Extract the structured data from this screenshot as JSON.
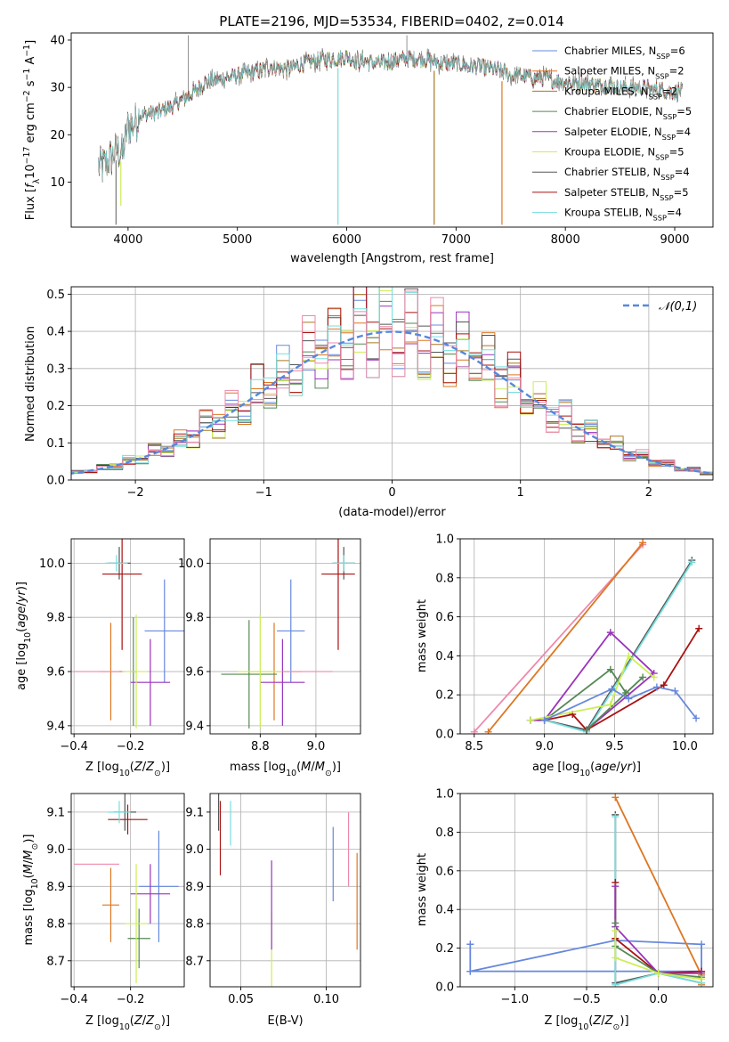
{
  "figure": {
    "title": "PLATE=2196, MJD=53534, FIBERID=0402, z=0.014"
  },
  "colors": {
    "Chabrier MILES": "#6688dd",
    "Salpeter MILES": "#dd7722",
    "Kroupa MILES": "#aa7722",
    "Chabrier ELODIE": "#558855",
    "Salpeter ELODIE": "#9933bb",
    "Kroupa ELODIE": "#ccee55",
    "Chabrier STELIB": "#555555",
    "Salpeter STELIB": "#aa1111",
    "Kroupa STELIB": "#77dddd",
    "pink": "#ee88aa",
    "gauss": "#5588dd"
  },
  "chart_data": [
    {
      "id": "spectrum",
      "type": "line",
      "title": "PLATE=2196, MJD=53534, FIBERID=0402, z=0.014",
      "xlabel": "wavelength [Angstrom, rest frame]",
      "ylabel": "Flux [f_λ 10^-17 erg cm^-2 s^-1 A^-1]",
      "xlim": [
        3480,
        9350
      ],
      "ylim": [
        0.5,
        41.5
      ],
      "xticks": [
        4000,
        5000,
        6000,
        7000,
        8000,
        9000
      ],
      "yticks": [
        10,
        20,
        30,
        40
      ],
      "grid": false,
      "legend_position": "top-right",
      "legend": [
        {
          "name": "Chabrier MILES",
          "nssp": "6"
        },
        {
          "name": "Salpeter MILES",
          "nssp": "2"
        },
        {
          "name": "Kroupa MILES",
          "nssp": "2"
        },
        {
          "name": "Chabrier ELODIE",
          "nssp": "5"
        },
        {
          "name": "Salpeter ELODIE",
          "nssp": "4"
        },
        {
          "name": "Kroupa ELODIE",
          "nssp": "5"
        },
        {
          "name": "Chabrier STELIB",
          "nssp": "4"
        },
        {
          "name": "Salpeter STELIB",
          "nssp": "5"
        },
        {
          "name": "Kroupa STELIB",
          "nssp": "4"
        }
      ],
      "continuum": {
        "x": [
          3730,
          3800,
          3850,
          3900,
          3950,
          4000,
          4050,
          4100,
          4200,
          4300,
          4400,
          4500,
          4600,
          4700,
          4800,
          4900,
          5000,
          5100,
          5200,
          5300,
          5400,
          5500,
          5600,
          5700,
          5800,
          5900,
          6000,
          6100,
          6200,
          6300,
          6400,
          6500,
          6600,
          6700,
          6800,
          6900,
          7000,
          7100,
          7200,
          7300,
          7400,
          7500,
          7600,
          7700,
          7800,
          7900,
          8000,
          8100,
          8200,
          8300,
          8400,
          8500,
          8600,
          8700,
          8800,
          8900,
          9000,
          9070
        ],
        "y": [
          13,
          14,
          15,
          17,
          16,
          22,
          22,
          24,
          24.5,
          25,
          26,
          27.5,
          29,
          31,
          31.5,
          32,
          32.5,
          33,
          33.5,
          34.5,
          34,
          34,
          35,
          35.5,
          36,
          36,
          36.5,
          35.5,
          35.5,
          35,
          35.5,
          36,
          36,
          36,
          35.5,
          35,
          35,
          34.5,
          34.5,
          34,
          33.5,
          32.5,
          32.5,
          32,
          32,
          31.5,
          31,
          31,
          31,
          30.5,
          30.5,
          30,
          30,
          30,
          29.5,
          29.5,
          29,
          29
        ]
      },
      "absorption_features": [
        {
          "x": 3890,
          "y": 1
        },
        {
          "x": 3934,
          "y": 5
        },
        {
          "x": 5920,
          "y": 1
        },
        {
          "x": 6800,
          "y": 1
        },
        {
          "x": 7420,
          "y": 1
        }
      ],
      "emission_features": [
        {
          "x": 4550,
          "y": 41
        },
        {
          "x": 6550,
          "y": 41
        }
      ]
    },
    {
      "id": "residuals",
      "type": "line",
      "xlabel": "(data-model)/error",
      "ylabel": "Normed distribution",
      "xlim": [
        -2.5,
        2.5
      ],
      "ylim": [
        0,
        0.52
      ],
      "xticks": [
        -2,
        -1,
        0,
        1,
        2
      ],
      "yticks": [
        0.0,
        0.1,
        0.2,
        0.3,
        0.4,
        0.5
      ],
      "grid": true,
      "legend_position": "top-right",
      "gaussian_label": "𝒩(0,1)",
      "gaussian": {
        "mean": 0,
        "sigma": 1
      },
      "bin_width": 0.1
    },
    {
      "id": "age_vs_Z",
      "type": "scatter",
      "xlabel": "Z [log10(Z/Z☉)]",
      "ylabel": "age  [log10(age/yr)]",
      "xlim": [
        -0.41,
        -0.01
      ],
      "ylim": [
        9.37,
        10.09
      ],
      "xticks": [
        -0.4,
        -0.2
      ],
      "yticks": [
        9.4,
        9.6,
        9.8,
        10.0
      ],
      "grid": true,
      "errorbars": [
        {
          "model": "Chabrier MILES",
          "x": -0.08,
          "xerr": 0.07,
          "y": 9.75,
          "yerr": 0.19
        },
        {
          "model": "Salpeter MILES",
          "x": -0.27,
          "xerr": 0.04,
          "y": 9.6,
          "yerr": 0.18
        },
        {
          "model": "pink",
          "x": -0.32,
          "xerr": 0.08,
          "y": 9.6,
          "yerr": 0.0
        },
        {
          "model": "Chabrier ELODIE",
          "x": -0.19,
          "xerr": 0.01,
          "y": 9.6,
          "yerr": 0.2
        },
        {
          "model": "Salpeter ELODIE",
          "x": -0.13,
          "xerr": 0.07,
          "y": 9.56,
          "yerr": 0.16
        },
        {
          "model": "Kroupa ELODIE",
          "x": -0.18,
          "xerr": 0.04,
          "y": 9.6,
          "yerr": 0.21
        },
        {
          "model": "Chabrier STELIB",
          "x": -0.24,
          "xerr": 0.04,
          "y": 10.0,
          "yerr": 0.06
        },
        {
          "model": "Salpeter STELIB",
          "x": -0.23,
          "xerr": 0.07,
          "y": 9.96,
          "yerr": 0.28
        },
        {
          "model": "Kroupa STELIB",
          "x": -0.25,
          "xerr": 0.04,
          "y": 10.0,
          "yerr": 0.03
        }
      ]
    },
    {
      "id": "age_vs_mass",
      "type": "scatter",
      "xlabel": "mass [log10(M/M☉)]",
      "ylabel": "",
      "xlim": [
        8.62,
        9.16
      ],
      "ylim": [
        9.37,
        10.09
      ],
      "xticks": [
        8.8,
        9.0
      ],
      "yticks": [
        9.4,
        9.6,
        9.8,
        10.0
      ],
      "grid": true,
      "errorbars": [
        {
          "model": "Chabrier MILES",
          "x": 8.91,
          "xerr": 0.05,
          "y": 9.75,
          "yerr": 0.19
        },
        {
          "model": "Salpeter MILES",
          "x": 8.85,
          "xerr": 0.1,
          "y": 9.6,
          "yerr": 0.18
        },
        {
          "model": "pink",
          "x": 8.96,
          "xerr": 0.1,
          "y": 9.6,
          "yerr": 0.0
        },
        {
          "model": "Chabrier ELODIE",
          "x": 8.76,
          "xerr": 0.1,
          "y": 9.59,
          "yerr": 0.2
        },
        {
          "model": "Salpeter ELODIE",
          "x": 8.88,
          "xerr": 0.08,
          "y": 9.56,
          "yerr": 0.16
        },
        {
          "model": "Kroupa ELODIE",
          "x": 8.8,
          "xerr": 0.08,
          "y": 9.6,
          "yerr": 0.21
        },
        {
          "model": "Chabrier STELIB",
          "x": 9.1,
          "xerr": 0.04,
          "y": 10.0,
          "yerr": 0.06
        },
        {
          "model": "Salpeter STELIB",
          "x": 9.08,
          "xerr": 0.06,
          "y": 9.96,
          "yerr": 0.28
        },
        {
          "model": "Kroupa STELIB",
          "x": 9.1,
          "xerr": 0.04,
          "y": 10.0,
          "yerr": 0.03
        }
      ]
    },
    {
      "id": "weight_vs_age",
      "type": "line",
      "xlabel": "age  [log10(age/yr)]",
      "ylabel": "mass weight",
      "xlim": [
        8.4,
        10.2
      ],
      "ylim": [
        0,
        1
      ],
      "xticks": [
        8.5,
        9.0,
        9.5,
        10.0
      ],
      "yticks": [
        0.0,
        0.2,
        0.4,
        0.6,
        0.8,
        1.0
      ],
      "grid": true,
      "series": [
        {
          "model": "pink",
          "x": [
            8.5,
            9.7
          ],
          "y": [
            0.01,
            0.97
          ]
        },
        {
          "model": "Salpeter MILES",
          "x": [
            8.6,
            9.7
          ],
          "y": [
            0.01,
            0.98
          ]
        },
        {
          "model": "Chabrier STELIB",
          "x": [
            8.9,
            9.0,
            9.3,
            10.05
          ],
          "y": [
            0.07,
            0.07,
            0.02,
            0.89
          ]
        },
        {
          "model": "Kroupa STELIB",
          "x": [
            9.0,
            9.3,
            10.05
          ],
          "y": [
            0.07,
            0.01,
            0.88
          ]
        },
        {
          "model": "Salpeter STELIB",
          "x": [
            9.0,
            9.2,
            9.3,
            9.85,
            10.1
          ],
          "y": [
            0.07,
            0.1,
            0.02,
            0.25,
            0.54
          ]
        },
        {
          "model": "Salpeter ELODIE",
          "x": [
            8.9,
            9.0,
            9.47,
            9.78,
            9.3
          ],
          "y": [
            0.07,
            0.07,
            0.52,
            0.31,
            0.02
          ]
        },
        {
          "model": "Chabrier ELODIE",
          "x": [
            9.0,
            9.47,
            9.58,
            9.7,
            9.3
          ],
          "y": [
            0.07,
            0.33,
            0.21,
            0.29,
            0.02
          ]
        },
        {
          "model": "Kroupa ELODIE",
          "x": [
            8.9,
            9.47,
            9.6,
            9.78
          ],
          "y": [
            0.07,
            0.15,
            0.4,
            0.29
          ]
        },
        {
          "model": "Chabrier MILES",
          "x": [
            9.0,
            9.48,
            9.6,
            9.8,
            9.93,
            10.08
          ],
          "y": [
            0.07,
            0.23,
            0.18,
            0.24,
            0.22,
            0.08
          ]
        }
      ]
    },
    {
      "id": "mass_vs_Z",
      "type": "scatter",
      "xlabel": "Z [log10(Z/Z☉)]",
      "ylabel": "mass [log10(M/M☉)]",
      "xlim": [
        -0.41,
        -0.01
      ],
      "ylim": [
        8.63,
        9.15
      ],
      "xticks": [
        -0.4,
        -0.2
      ],
      "yticks": [
        8.7,
        8.8,
        8.9,
        9.0,
        9.1
      ],
      "grid": true,
      "errorbars": [
        {
          "model": "Chabrier MILES",
          "x": -0.1,
          "xerr": 0.07,
          "y": 8.9,
          "yerr": 0.15
        },
        {
          "model": "Salpeter MILES",
          "x": -0.27,
          "xerr": 0.03,
          "y": 8.85,
          "yerr": 0.1
        },
        {
          "model": "pink",
          "x": -0.32,
          "xerr": 0.08,
          "y": 8.96,
          "yerr": 0.0
        },
        {
          "model": "Chabrier ELODIE",
          "x": -0.17,
          "xerr": 0.04,
          "y": 8.76,
          "yerr": 0.08
        },
        {
          "model": "Salpeter ELODIE",
          "x": -0.13,
          "xerr": 0.07,
          "y": 8.88,
          "yerr": 0.08
        },
        {
          "model": "Kroupa ELODIE",
          "x": -0.18,
          "xerr": 0.04,
          "y": 8.8,
          "yerr": 0.16
        },
        {
          "model": "Chabrier STELIB",
          "x": -0.22,
          "xerr": 0.04,
          "y": 9.1,
          "yerr": 0.05
        },
        {
          "model": "Salpeter STELIB",
          "x": -0.21,
          "xerr": 0.07,
          "y": 9.08,
          "yerr": 0.04
        },
        {
          "model": "Kroupa STELIB",
          "x": -0.24,
          "xerr": 0.04,
          "y": 9.1,
          "yerr": 0.03
        }
      ]
    },
    {
      "id": "mass_vs_EBV",
      "type": "scatter",
      "xlabel": "E(B-V)",
      "ylabel": "",
      "xlim": [
        0.032,
        0.12
      ],
      "ylim": [
        8.63,
        9.15
      ],
      "xticks": [
        0.05,
        0.1
      ],
      "yticks": [
        8.7,
        8.8,
        8.9,
        9.0,
        9.1
      ],
      "grid": true,
      "errorbars": [
        {
          "model": "Chabrier STELIB",
          "x": 0.037,
          "y": 9.1,
          "yerr": 0.05
        },
        {
          "model": "Salpeter STELIB",
          "x": 0.038,
          "y": 9.03,
          "yerr": 0.1
        },
        {
          "model": "Kroupa STELIB",
          "x": 0.044,
          "y": 9.07,
          "yerr": 0.06
        },
        {
          "model": "Kroupa ELODIE",
          "x": 0.068,
          "y": 8.73,
          "yerr": 0.1
        },
        {
          "model": "Salpeter ELODIE",
          "x": 0.068,
          "y": 8.85,
          "yerr": 0.12
        },
        {
          "model": "Chabrier MILES",
          "x": 0.104,
          "y": 8.96,
          "yerr": 0.1
        },
        {
          "model": "pink",
          "x": 0.113,
          "y": 9.0,
          "yerr": 0.1
        },
        {
          "model": "Salpeter MILES",
          "x": 0.118,
          "y": 8.86,
          "yerr": 0.13
        }
      ]
    },
    {
      "id": "weight_vs_Z",
      "type": "line",
      "xlabel": "Z [log10(Z/Z☉)]",
      "ylabel": "mass weight",
      "xlim": [
        -1.38,
        0.38
      ],
      "ylim": [
        0,
        1
      ],
      "xticks": [
        -1.0,
        -0.5,
        0.0
      ],
      "yticks": [
        0.0,
        0.2,
        0.4,
        0.6,
        0.8,
        1.0
      ],
      "grid": true,
      "series": [
        {
          "model": "Chabrier MILES",
          "x": [
            -1.31,
            -1.31,
            0.3,
            0.3,
            -0.3,
            -1.31
          ],
          "y": [
            0.22,
            0.08,
            0.08,
            0.22,
            0.24,
            0.08
          ]
        },
        {
          "model": "Salpeter MILES",
          "x": [
            -0.3,
            0.3,
            0.3
          ],
          "y": [
            0.98,
            0.06,
            0.01
          ]
        },
        {
          "model": "Chabrier STELIB",
          "x": [
            -0.3,
            -0.3,
            0.0,
            0.3
          ],
          "y": [
            0.89,
            0.02,
            0.07,
            0.02
          ]
        },
        {
          "model": "Kroupa STELIB",
          "x": [
            -0.3,
            -0.3,
            0.0,
            0.3
          ],
          "y": [
            0.88,
            0.01,
            0.07,
            0.02
          ]
        },
        {
          "model": "Salpeter STELIB",
          "x": [
            -0.3,
            -0.3,
            0.0,
            0.3
          ],
          "y": [
            0.54,
            0.25,
            0.07,
            0.08
          ]
        },
        {
          "model": "Salpeter ELODIE",
          "x": [
            -0.3,
            -0.3,
            0.0,
            0.3
          ],
          "y": [
            0.52,
            0.31,
            0.07,
            0.07
          ]
        },
        {
          "model": "Chabrier ELODIE",
          "x": [
            -0.3,
            -0.3,
            0.0,
            0.3
          ],
          "y": [
            0.33,
            0.21,
            0.07,
            0.05
          ]
        },
        {
          "model": "Kroupa ELODIE",
          "x": [
            -0.3,
            -0.3,
            0.0,
            0.3
          ],
          "y": [
            0.29,
            0.15,
            0.07,
            0.04
          ]
        }
      ]
    }
  ]
}
